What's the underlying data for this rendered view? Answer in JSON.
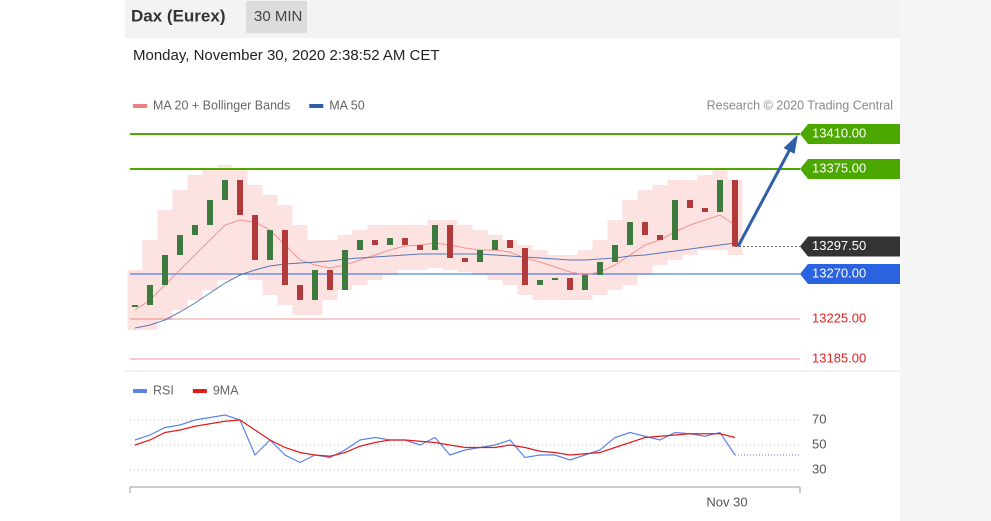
{
  "header": {
    "title": "Dax (Eurex)",
    "timeframe": "30 MIN",
    "timestamp": "Monday, November 30, 2020 2:38:52 AM CET",
    "credit": "Research © 2020 Trading Central"
  },
  "chart_data": [
    {
      "type": "candlestick",
      "ylim": [
        13174,
        13424
      ],
      "up_color": "#3d7a3d",
      "down_color": "#b23a3a",
      "close": [
        13239,
        13259,
        13289,
        13309,
        13319,
        13344,
        13364,
        13329,
        13284,
        13314,
        13259,
        13244,
        13274,
        13254,
        13294,
        13304,
        13299,
        13306,
        13299,
        13294,
        13319,
        13286,
        13282,
        13294,
        13304,
        13296,
        13259,
        13264,
        13266,
        13254,
        13269,
        13282,
        13299,
        13322,
        13309,
        13304,
        13344,
        13336,
        13332,
        13364,
        13297.5
      ],
      "series": [
        {
          "name": "MA 20 + Bollinger Bands",
          "color": "#f08080",
          "band_color": "#fde2e2",
          "values": [
            13234,
            13244,
            13259,
            13274,
            13289,
            13304,
            13319,
            13324,
            13322,
            13314,
            13299,
            13284,
            13279,
            13276,
            13279,
            13284,
            13289,
            13294,
            13298,
            13299,
            13301,
            13299,
            13296,
            13294,
            13294,
            13292,
            13286,
            13282,
            13277,
            13272,
            13269,
            13272,
            13279,
            13289,
            13299,
            13304,
            13312,
            13319,
            13324,
            13329,
            13319
          ],
          "upper": [
            13274,
            13304,
            13334,
            13354,
            13369,
            13374,
            13379,
            13374,
            13359,
            13349,
            13339,
            13319,
            13304,
            13304,
            13309,
            13314,
            13319,
            13319,
            13319,
            13319,
            13324,
            13324,
            13319,
            13314,
            13309,
            13304,
            13299,
            13294,
            13289,
            13289,
            13294,
            13304,
            13324,
            13344,
            13354,
            13359,
            13364,
            13364,
            13369,
            13374,
            13364
          ],
          "lower": [
            13214,
            13214,
            13224,
            13234,
            13244,
            13254,
            13264,
            13269,
            13264,
            13249,
            13239,
            13229,
            13229,
            13244,
            13254,
            13259,
            13264,
            13269,
            13274,
            13274,
            13276,
            13274,
            13272,
            13269,
            13264,
            13259,
            13249,
            13244,
            13244,
            13244,
            13244,
            13249,
            13254,
            13259,
            13269,
            13279,
            13284,
            13289,
            13294,
            13294,
            13289
          ]
        },
        {
          "name": "MA 50",
          "color": "#2d5ea8",
          "values": [
            13216,
            13219,
            13224,
            13232,
            13241,
            13251,
            13261,
            13269,
            13274,
            13278,
            13280,
            13281,
            13282,
            13283,
            13285,
            13286,
            13287,
            13288,
            13289,
            13290,
            13290,
            13290,
            13290,
            13290,
            13289,
            13288,
            13287,
            13286,
            13285,
            13284,
            13284,
            13285,
            13286,
            13288,
            13289,
            13291,
            13293,
            13295,
            13297,
            13299,
            13301
          ]
        }
      ],
      "levels": [
        {
          "value": 13410,
          "label": "13410.00",
          "color": "#4ca800",
          "boxed": true
        },
        {
          "value": 13375,
          "label": "13375.00",
          "color": "#4ca800",
          "boxed": true
        },
        {
          "value": 13297.5,
          "label": "13297.50",
          "color": "#333333",
          "boxed": true,
          "dotted": true
        },
        {
          "value": 13270,
          "label": "13270.00",
          "color": "#2a62e0",
          "boxed": true
        },
        {
          "value": 13225,
          "label": "13225.00",
          "color": "#e02020",
          "boxed": false
        },
        {
          "value": 13185,
          "label": "13185.00",
          "color": "#e02020",
          "boxed": false
        }
      ]
    },
    {
      "type": "line",
      "ylim": [
        22,
        82
      ],
      "yticks": [
        30,
        50,
        70
      ],
      "grid": true,
      "categories": [
        null,
        null,
        null,
        null,
        null,
        null,
        null,
        null,
        null,
        null,
        null,
        null,
        null,
        null,
        null,
        null,
        null,
        null,
        null,
        null,
        null,
        null,
        null,
        null,
        null,
        null,
        null,
        null,
        null,
        null,
        null,
        null,
        null,
        null,
        null,
        null,
        null,
        null,
        null,
        "Nov 30",
        null
      ],
      "series": [
        {
          "name": "RSI",
          "color": "#5b84e8",
          "values": [
            54,
            58,
            64,
            66,
            70,
            72,
            74,
            70,
            42,
            54,
            42,
            36,
            42,
            40,
            46,
            54,
            56,
            54,
            54,
            50,
            56,
            42,
            46,
            48,
            50,
            54,
            40,
            42,
            42,
            38,
            42,
            46,
            56,
            60,
            57,
            54,
            60,
            59,
            57,
            60,
            42
          ]
        },
        {
          "name": "9MA",
          "color": "#e31b1b",
          "values": [
            50,
            54,
            60,
            62,
            65,
            67,
            69,
            70,
            62,
            54,
            48,
            44,
            42,
            41,
            44,
            49,
            52,
            54,
            54,
            53,
            52,
            50,
            48,
            48,
            48,
            50,
            48,
            45,
            44,
            42,
            43,
            44,
            48,
            52,
            56,
            57,
            58,
            59,
            59,
            59,
            56
          ]
        }
      ]
    }
  ]
}
